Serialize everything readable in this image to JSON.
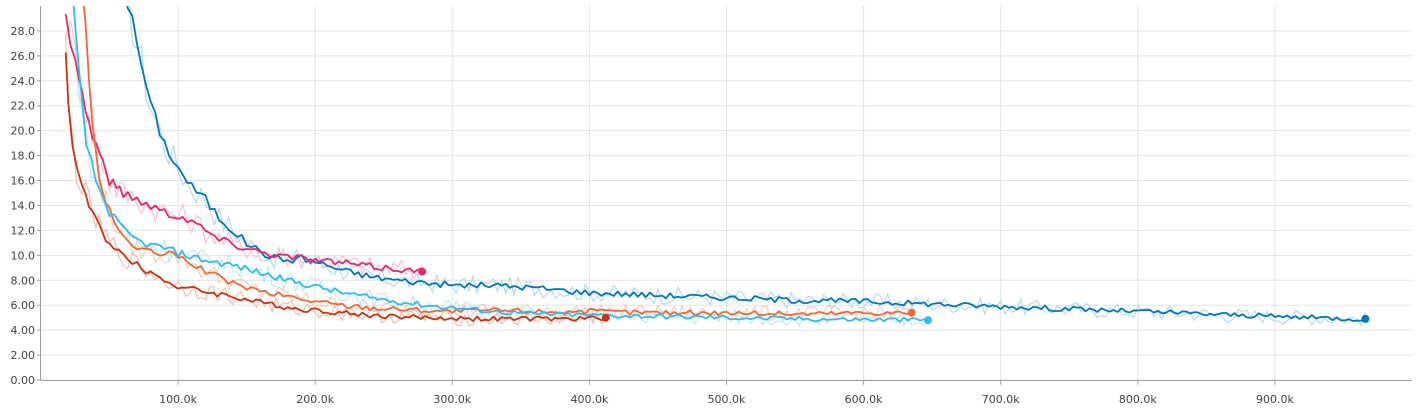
{
  "chart_data": {
    "type": "line",
    "title": "",
    "xlabel": "",
    "ylabel": "",
    "xlim": [
      0,
      1000000
    ],
    "ylim": [
      0,
      30
    ],
    "grid": true,
    "legend": "none",
    "y_ticks": [
      0,
      2,
      4,
      6,
      8,
      10,
      12,
      14,
      16,
      18,
      20,
      22,
      24,
      26,
      28
    ],
    "y_tick_labels": [
      "0.00",
      "2.00",
      "4.00",
      "6.00",
      "8.00",
      "10.0",
      "12.0",
      "14.0",
      "16.0",
      "18.0",
      "20.0",
      "22.0",
      "24.0",
      "26.0",
      "28.0"
    ],
    "x_ticks": [
      100000,
      200000,
      300000,
      400000,
      500000,
      600000,
      700000,
      800000,
      900000
    ],
    "x_tick_labels": [
      "100.0k",
      "200.0k",
      "300.0k",
      "400.0k",
      "500.0k",
      "600.0k",
      "700.0k",
      "800.0k",
      "900.0k"
    ],
    "series": [
      {
        "color": "#0077bb",
        "raw_color": "#b8d9ee",
        "points": [
          [
            60000,
            32
          ],
          [
            70000,
            27
          ],
          [
            80000,
            22
          ],
          [
            90000,
            19
          ],
          [
            100000,
            17
          ],
          [
            110000,
            15.5
          ],
          [
            120000,
            14.5
          ],
          [
            130000,
            13
          ],
          [
            140000,
            12
          ],
          [
            150000,
            11
          ],
          [
            160000,
            10.3
          ],
          [
            170000,
            9.8
          ],
          [
            180000,
            9.6
          ],
          [
            190000,
            9.8
          ],
          [
            200000,
            9.5
          ],
          [
            220000,
            8.8
          ],
          [
            240000,
            8.3
          ],
          [
            260000,
            8.0
          ],
          [
            280000,
            7.8
          ],
          [
            300000,
            7.6
          ],
          [
            330000,
            7.6
          ],
          [
            360000,
            7.4
          ],
          [
            400000,
            7.0
          ],
          [
            450000,
            6.8
          ],
          [
            500000,
            6.6
          ],
          [
            550000,
            6.4
          ],
          [
            600000,
            6.3
          ],
          [
            650000,
            6.1
          ],
          [
            700000,
            5.9
          ],
          [
            750000,
            5.7
          ],
          [
            800000,
            5.5
          ],
          [
            850000,
            5.3
          ],
          [
            900000,
            5.1
          ],
          [
            930000,
            5.0
          ],
          [
            966000,
            4.9
          ]
        ]
      },
      {
        "color": "#e7286e",
        "raw_color": "#f7c4d5",
        "points": [
          [
            18000,
            29
          ],
          [
            25000,
            26
          ],
          [
            30000,
            23
          ],
          [
            35000,
            20.5
          ],
          [
            40000,
            19
          ],
          [
            45000,
            17.5
          ],
          [
            50000,
            16
          ],
          [
            55000,
            15.5
          ],
          [
            60000,
            15
          ],
          [
            70000,
            14.5
          ],
          [
            80000,
            14
          ],
          [
            90000,
            13.5
          ],
          [
            100000,
            13.2
          ],
          [
            110000,
            12.8
          ],
          [
            120000,
            12
          ],
          [
            130000,
            11.3
          ],
          [
            140000,
            10.9
          ],
          [
            150000,
            10.6
          ],
          [
            160000,
            10.3
          ],
          [
            170000,
            10.1
          ],
          [
            180000,
            9.9
          ],
          [
            190000,
            9.8
          ],
          [
            200000,
            9.6
          ],
          [
            220000,
            9.4
          ],
          [
            240000,
            9.1
          ],
          [
            260000,
            8.9
          ],
          [
            278000,
            8.7
          ]
        ]
      },
      {
        "color": "#ee6a3b",
        "raw_color": "#f8cdbd",
        "points": [
          [
            30000,
            32
          ],
          [
            35000,
            24
          ],
          [
            40000,
            18
          ],
          [
            45000,
            15
          ],
          [
            50000,
            13.5
          ],
          [
            60000,
            11.5
          ],
          [
            70000,
            10.5
          ],
          [
            80000,
            10.2
          ],
          [
            90000,
            10.1
          ],
          [
            100000,
            9.9
          ],
          [
            110000,
            9.4
          ],
          [
            120000,
            8.7
          ],
          [
            130000,
            8.2
          ],
          [
            140000,
            7.8
          ],
          [
            150000,
            7.4
          ],
          [
            160000,
            7.1
          ],
          [
            170000,
            6.9
          ],
          [
            180000,
            6.7
          ],
          [
            190000,
            6.5
          ],
          [
            200000,
            6.3
          ],
          [
            220000,
            6.0
          ],
          [
            240000,
            5.8
          ],
          [
            260000,
            5.7
          ],
          [
            280000,
            5.6
          ],
          [
            300000,
            5.5
          ],
          [
            330000,
            5.6
          ],
          [
            360000,
            5.5
          ],
          [
            400000,
            5.5
          ],
          [
            450000,
            5.4
          ],
          [
            500000,
            5.4
          ],
          [
            550000,
            5.3
          ],
          [
            600000,
            5.4
          ],
          [
            635000,
            5.4
          ]
        ]
      },
      {
        "color": "#33bbee",
        "raw_color": "#c2e8f7",
        "points": [
          [
            22000,
            32
          ],
          [
            28000,
            24
          ],
          [
            33000,
            19
          ],
          [
            40000,
            16
          ],
          [
            50000,
            13.5
          ],
          [
            60000,
            12
          ],
          [
            70000,
            11.2
          ],
          [
            80000,
            10.8
          ],
          [
            90000,
            10.6
          ],
          [
            100000,
            10.2
          ],
          [
            120000,
            9.6
          ],
          [
            140000,
            9.2
          ],
          [
            160000,
            8.6
          ],
          [
            180000,
            8.0
          ],
          [
            200000,
            7.5
          ],
          [
            220000,
            7.0
          ],
          [
            240000,
            6.6
          ],
          [
            260000,
            6.3
          ],
          [
            280000,
            6.0
          ],
          [
            300000,
            5.8
          ],
          [
            330000,
            5.5
          ],
          [
            360000,
            5.3
          ],
          [
            400000,
            5.2
          ],
          [
            450000,
            5.1
          ],
          [
            500000,
            5.0
          ],
          [
            550000,
            4.9
          ],
          [
            600000,
            4.85
          ],
          [
            647000,
            4.8
          ]
        ]
      },
      {
        "color": "#cc3311",
        "raw_color": "#f0c1b6",
        "points": [
          [
            18000,
            26.5
          ],
          [
            20000,
            22
          ],
          [
            23000,
            19
          ],
          [
            26000,
            17
          ],
          [
            30000,
            15.5
          ],
          [
            35000,
            14
          ],
          [
            40000,
            12.8
          ],
          [
            45000,
            11.8
          ],
          [
            50000,
            11
          ],
          [
            60000,
            10
          ],
          [
            70000,
            9.2
          ],
          [
            80000,
            8.6
          ],
          [
            90000,
            8.0
          ],
          [
            100000,
            7.5
          ],
          [
            120000,
            7.1
          ],
          [
            140000,
            6.7
          ],
          [
            160000,
            6.2
          ],
          [
            180000,
            5.8
          ],
          [
            200000,
            5.6
          ],
          [
            220000,
            5.4
          ],
          [
            240000,
            5.2
          ],
          [
            260000,
            5.1
          ],
          [
            280000,
            5.0
          ],
          [
            300000,
            4.95
          ],
          [
            330000,
            4.9
          ],
          [
            360000,
            4.9
          ],
          [
            390000,
            4.9
          ],
          [
            412000,
            5.0
          ]
        ]
      }
    ]
  }
}
